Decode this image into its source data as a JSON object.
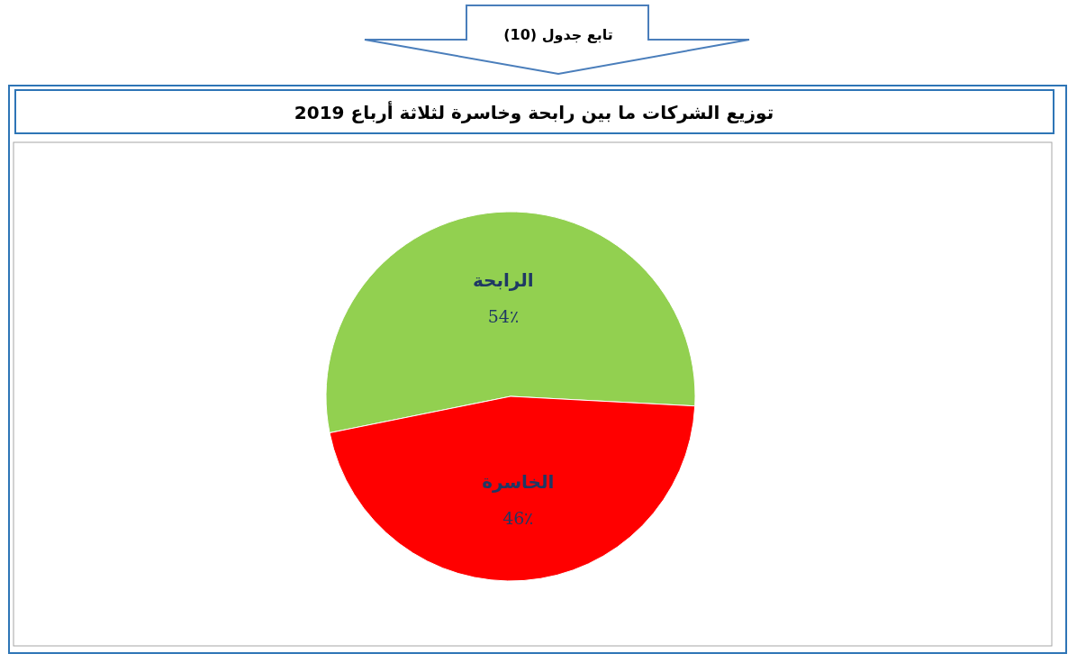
{
  "chart_data": {
    "type": "pie",
    "title": "توزيع الشركات ما بين رابحة وخاسرة لثلاثة أرباع 2019",
    "annotations": [
      "تابع جدول (10)"
    ],
    "categories": [
      "الرابحة",
      "الخاسرة"
    ],
    "values": [
      54,
      46
    ],
    "colors": [
      "#92d050",
      "#ff0000"
    ],
    "value_labels": [
      "54٪",
      "46٪"
    ]
  }
}
